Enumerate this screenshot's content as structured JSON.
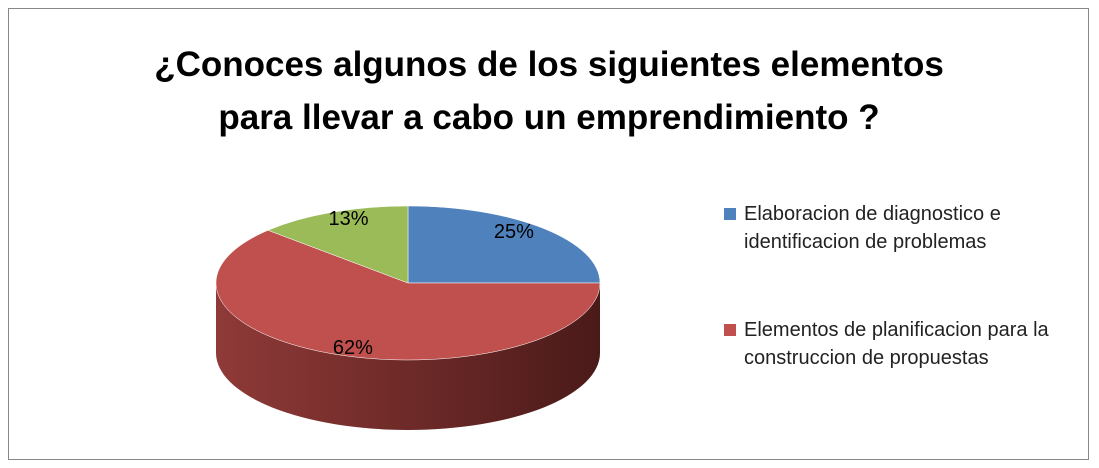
{
  "chart_data": {
    "type": "pie",
    "title": "¿Conoces algunos de los siguientes elementos para llevar a cabo un emprendimiento ?",
    "categories": [
      "Elaboracion de diagnostico e identificacion de problemas",
      "Elementos de planificacion para la construccion de propuestas",
      null
    ],
    "values": [
      25,
      62,
      13
    ],
    "value_labels": [
      "25%",
      "62%",
      "13%"
    ],
    "colors": [
      "#4f81bd",
      "#c0504d",
      "#9bbb59"
    ]
  }
}
